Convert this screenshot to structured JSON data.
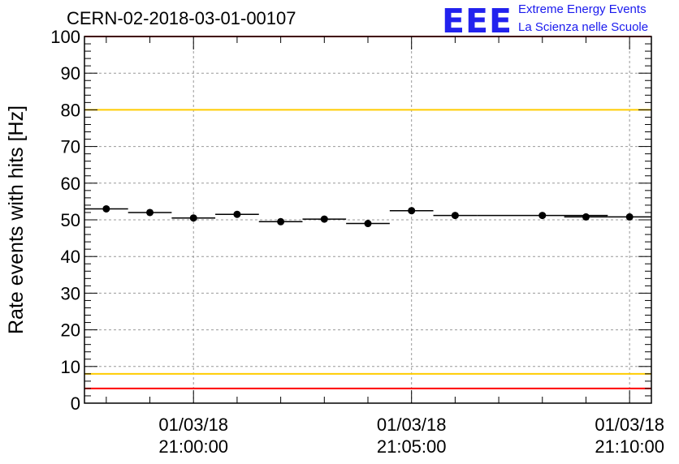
{
  "header": {
    "run_id": "CERN-02-2018-03-01-00107",
    "logo_text": "EEE",
    "logo_line1": "Extreme Energy Events",
    "logo_line2": "La Scienza nelle Scuole"
  },
  "chart_data": {
    "type": "scatter",
    "ylabel": "Rate events with hits [Hz]",
    "ylim": [
      0,
      100
    ],
    "yticks": [
      0,
      10,
      20,
      30,
      40,
      50,
      60,
      70,
      80,
      90,
      100
    ],
    "xlim_minutes": [
      -2.5,
      10.5
    ],
    "xticks": [
      {
        "t": 0,
        "date": "01/03/18",
        "time": "21:00:00"
      },
      {
        "t": 5,
        "date": "01/03/18",
        "time": "21:05:00"
      },
      {
        "t": 10,
        "date": "01/03/18",
        "time": "21:10:00"
      }
    ],
    "grid": true,
    "points": [
      {
        "x": -2.0,
        "xerr": 0.5,
        "y": 53.0
      },
      {
        "x": -1.0,
        "xerr": 0.5,
        "y": 52.0
      },
      {
        "x": 0.0,
        "xerr": 0.5,
        "y": 50.5
      },
      {
        "x": 1.0,
        "xerr": 0.5,
        "y": 51.5
      },
      {
        "x": 2.0,
        "xerr": 0.5,
        "y": 49.5
      },
      {
        "x": 3.0,
        "xerr": 0.5,
        "y": 50.2
      },
      {
        "x": 4.0,
        "xerr": 0.5,
        "y": 49.0
      },
      {
        "x": 5.0,
        "xerr": 0.5,
        "y": 52.5
      },
      {
        "x": 6.0,
        "xerr": 0.5,
        "y": 51.2
      },
      {
        "x": 8.0,
        "xerr": 1.5,
        "y": 51.2
      },
      {
        "x": 9.0,
        "xerr": 0.5,
        "y": 50.8
      },
      {
        "x": 10.0,
        "xerr": 0.5,
        "y": 50.8
      }
    ],
    "reference_lines": [
      {
        "y": 100,
        "color": "#ff0000"
      },
      {
        "y": 80,
        "color": "#ffcc00"
      },
      {
        "y": 8,
        "color": "#ffcc00"
      },
      {
        "y": 4,
        "color": "#ff0000"
      }
    ]
  }
}
